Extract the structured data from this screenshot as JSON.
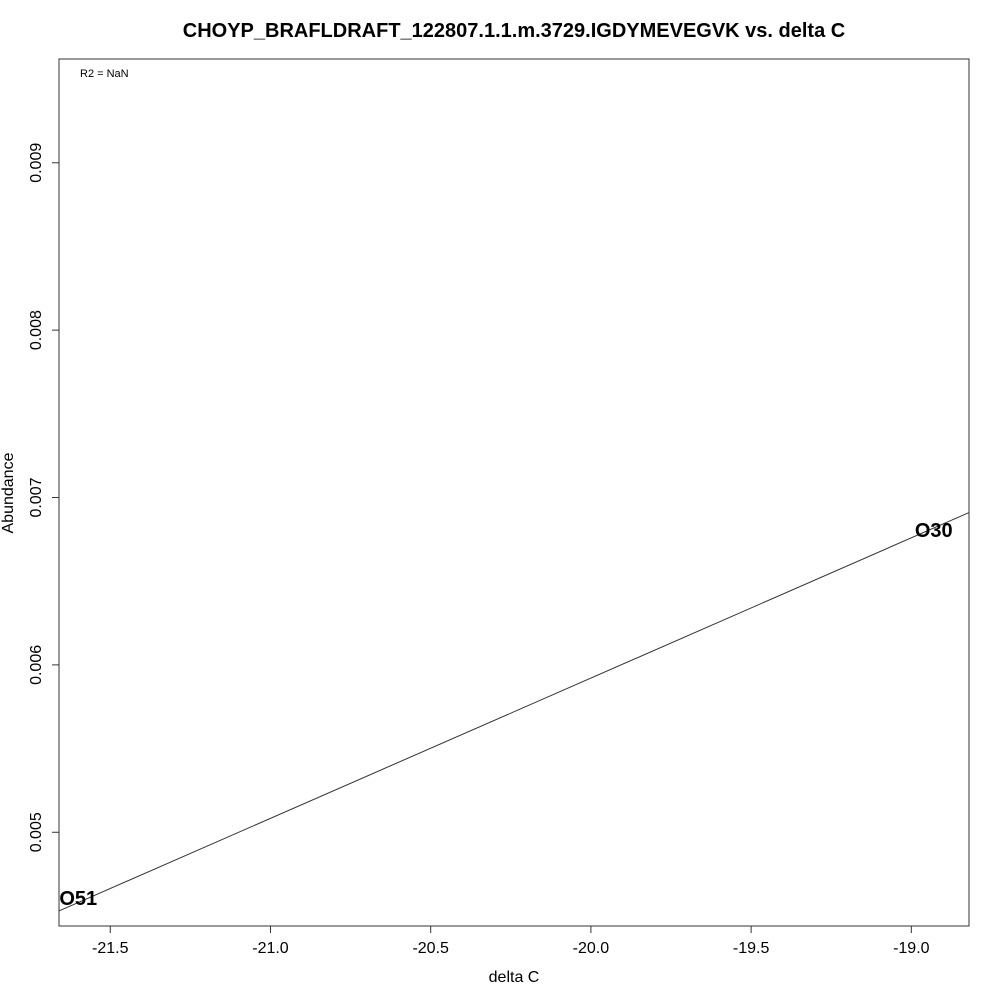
{
  "chart_data": {
    "type": "scatter",
    "title": "CHOYP_BRAFLDRAFT_122807.1.1.m.3729.IGDYMEVEGVK vs. delta C",
    "xlabel": "delta C",
    "ylabel": "Abundance",
    "annotation": "R2 = NaN",
    "xlim": [
      -21.66,
      -18.82
    ],
    "ylim": [
      0.00444,
      0.00962
    ],
    "x_ticks": [
      -21.5,
      -21.0,
      -20.5,
      -20.0,
      -19.5,
      -19.0
    ],
    "x_tick_labels": [
      "-21.5",
      "-21.0",
      "-20.5",
      "-20.0",
      "-19.5",
      "-19.0"
    ],
    "y_ticks": [
      0.005,
      0.006,
      0.007,
      0.008,
      0.009
    ],
    "y_tick_labels": [
      "0.005",
      "0.006",
      "0.007",
      "0.008",
      "0.009"
    ],
    "grid": false,
    "points": [
      {
        "label": "O51",
        "x": -21.6,
        "y": 0.0046
      },
      {
        "label": "O30",
        "x": -18.93,
        "y": 0.0068
      }
    ],
    "fit_line": {
      "x": [
        -21.66,
        -18.82
      ],
      "y": [
        0.00453,
        0.00691
      ]
    }
  }
}
